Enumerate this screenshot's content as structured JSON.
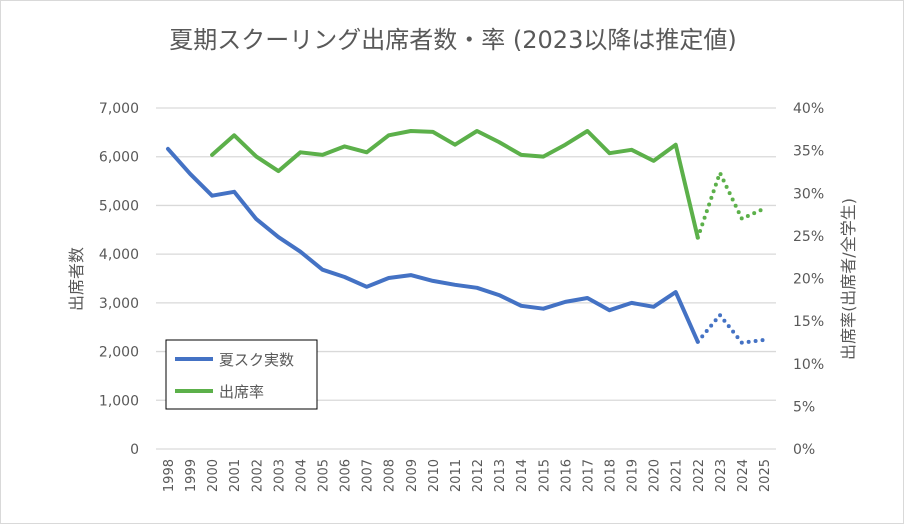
{
  "chart_data": {
    "type": "line",
    "title": "夏期スクーリング出席者数・率 (2023以降は推定値)",
    "ylabel": "出席者数",
    "y2label": "出席率(出席者/全学生)",
    "xlabel": "",
    "ylim": [
      0,
      7000
    ],
    "y2lim": [
      0,
      0.4
    ],
    "yticks": [
      "0",
      "1,000",
      "2,000",
      "3,000",
      "4,000",
      "5,000",
      "6,000",
      "7,000"
    ],
    "y2ticks": [
      "0%",
      "5%",
      "10%",
      "15%",
      "20%",
      "25%",
      "30%",
      "35%",
      "40%"
    ],
    "grid": true,
    "legend_position": "bottom-left",
    "estimated_from": 2022,
    "x": [
      "1998",
      "1999",
      "2000",
      "2001",
      "2002",
      "2003",
      "2004",
      "2005",
      "2006",
      "2007",
      "2008",
      "2009",
      "2010",
      "2011",
      "2012",
      "2013",
      "2014",
      "2015",
      "2016",
      "2017",
      "2018",
      "2019",
      "2020",
      "2021",
      "2022",
      "2023",
      "2024",
      "2025"
    ],
    "series": [
      {
        "name": "夏スク実数",
        "axis": "left",
        "color": "#4472c4",
        "values": [
          6160,
          5650,
          5200,
          5280,
          4720,
          4350,
          4050,
          3680,
          3530,
          3330,
          3510,
          3570,
          3450,
          3370,
          3310,
          3160,
          2940,
          2880,
          3020,
          3100,
          2850,
          3000,
          2920,
          3220,
          2200,
          2750,
          2180,
          2240
        ]
      },
      {
        "name": "出席率",
        "axis": "right",
        "color": "#5cb04a",
        "values": [
          null,
          null,
          0.345,
          0.368,
          0.343,
          0.326,
          0.348,
          0.345,
          0.355,
          0.348,
          0.368,
          0.373,
          0.372,
          0.357,
          0.373,
          0.36,
          0.345,
          0.343,
          0.357,
          0.373,
          0.347,
          0.351,
          0.338,
          0.357,
          0.248,
          0.324,
          0.27,
          0.282
        ]
      }
    ]
  }
}
